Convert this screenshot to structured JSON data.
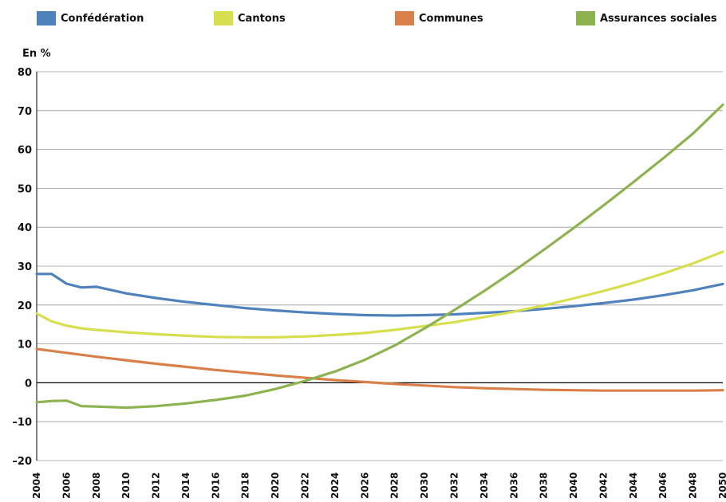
{
  "chart_data": {
    "type": "line",
    "title": "",
    "xlabel": "",
    "ylabel": "En %",
    "xlim": [
      2004,
      2050
    ],
    "ylim": [
      -20,
      80
    ],
    "y_ticks": [
      80,
      70,
      60,
      50,
      40,
      30,
      20,
      10,
      0,
      -10,
      -20
    ],
    "y_tick_labels": [
      "80",
      "70",
      "60",
      "50",
      "40",
      "30",
      "20",
      "10",
      "0",
      "–10",
      "–20"
    ],
    "x_ticks": [
      2004,
      2006,
      2008,
      2010,
      2012,
      2014,
      2016,
      2018,
      2020,
      2022,
      2024,
      2026,
      2028,
      2030,
      2032,
      2034,
      2036,
      2038,
      2040,
      2042,
      2044,
      2046,
      2048,
      2050
    ],
    "x_tick_labels": [
      "2004",
      "2006",
      "2008",
      "2010",
      "2012",
      "2014",
      "2016",
      "2018",
      "2020",
      "2022",
      "2024",
      "2026",
      "2028",
      "2030",
      "2032",
      "2034",
      "2036",
      "2038",
      "2040",
      "2042",
      "2044",
      "2046",
      "2048",
      "2050"
    ],
    "grid": "horizontal",
    "legend_position": "top",
    "series": [
      {
        "name": "Confédération",
        "color": "#4f81bd",
        "x": [
          2004,
          2005,
          2006,
          2007,
          2008,
          2010,
          2012,
          2014,
          2016,
          2018,
          2020,
          2022,
          2024,
          2026,
          2028,
          2030,
          2032,
          2034,
          2036,
          2038,
          2040,
          2042,
          2044,
          2046,
          2048,
          2050
        ],
        "values": [
          28.0,
          28.0,
          25.5,
          24.5,
          24.7,
          23.0,
          21.8,
          20.8,
          20.0,
          19.2,
          18.6,
          18.1,
          17.7,
          17.4,
          17.3,
          17.4,
          17.6,
          18.0,
          18.4,
          19.0,
          19.7,
          20.5,
          21.4,
          22.5,
          23.8,
          25.4
        ]
      },
      {
        "name": "Cantons",
        "color": "#d7df4f",
        "x": [
          2004,
          2005,
          2006,
          2007,
          2008,
          2010,
          2012,
          2014,
          2016,
          2018,
          2020,
          2022,
          2024,
          2026,
          2028,
          2030,
          2032,
          2034,
          2036,
          2038,
          2040,
          2042,
          2044,
          2046,
          2048,
          2050
        ],
        "values": [
          17.8,
          15.8,
          14.7,
          14.0,
          13.6,
          13.0,
          12.5,
          12.1,
          11.8,
          11.7,
          11.7,
          11.9,
          12.3,
          12.8,
          13.6,
          14.6,
          15.6,
          16.9,
          18.3,
          19.9,
          21.7,
          23.6,
          25.7,
          28.1,
          30.7,
          33.7
        ]
      },
      {
        "name": "Communes",
        "color": "#d9804a",
        "x": [
          2004,
          2006,
          2008,
          2010,
          2012,
          2014,
          2016,
          2018,
          2020,
          2022,
          2024,
          2026,
          2028,
          2030,
          2032,
          2034,
          2036,
          2038,
          2040,
          2042,
          2044,
          2046,
          2048,
          2050
        ],
        "values": [
          8.7,
          7.7,
          6.7,
          5.8,
          4.9,
          4.1,
          3.3,
          2.6,
          1.9,
          1.3,
          0.7,
          0.2,
          -0.3,
          -0.7,
          -1.1,
          -1.4,
          -1.6,
          -1.8,
          -1.9,
          -2.0,
          -2.0,
          -2.0,
          -2.0,
          -1.9
        ]
      },
      {
        "name": "Assurances sociales",
        "color": "#8db350",
        "x": [
          2004,
          2005,
          2006,
          2007,
          2008,
          2010,
          2012,
          2014,
          2016,
          2018,
          2020,
          2022,
          2024,
          2026,
          2028,
          2030,
          2032,
          2034,
          2036,
          2038,
          2040,
          2042,
          2044,
          2046,
          2048,
          2050
        ],
        "values": [
          -5.0,
          -4.7,
          -4.6,
          -6.0,
          -6.1,
          -6.4,
          -6.0,
          -5.3,
          -4.4,
          -3.3,
          -1.6,
          0.5,
          2.9,
          5.9,
          9.6,
          14.0,
          18.7,
          23.6,
          28.8,
          34.2,
          39.8,
          45.6,
          51.6,
          57.7,
          64.1,
          71.5
        ]
      }
    ]
  }
}
